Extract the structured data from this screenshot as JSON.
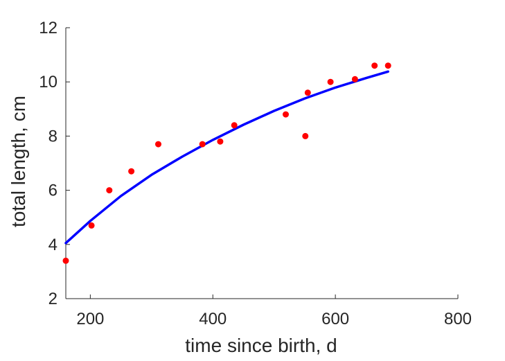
{
  "chart_data": {
    "type": "scatter",
    "title": "",
    "xlabel": "time since birth, d",
    "ylabel": "total length, cm",
    "xlim": [
      160,
      800
    ],
    "ylim": [
      2,
      12
    ],
    "xticks": [
      200,
      400,
      600,
      800
    ],
    "yticks": [
      2,
      4,
      6,
      8,
      10,
      12
    ],
    "grid": false,
    "legend": "none",
    "series": [
      {
        "kind": "points",
        "color": "#ff0000",
        "points": [
          [
            160,
            3.4
          ],
          [
            202,
            4.7
          ],
          [
            231,
            6.0
          ],
          [
            267,
            6.7
          ],
          [
            311,
            7.7
          ],
          [
            383,
            7.7
          ],
          [
            412,
            7.8
          ],
          [
            435,
            8.4
          ],
          [
            519,
            8.8
          ],
          [
            551,
            8.0
          ],
          [
            555,
            9.6
          ],
          [
            592,
            10.0
          ],
          [
            632,
            10.1
          ],
          [
            664,
            10.6
          ],
          [
            686,
            10.6
          ]
        ]
      },
      {
        "kind": "line",
        "color": "#0000ff",
        "points": [
          [
            160,
            4.05
          ],
          [
            200,
            4.87
          ],
          [
            250,
            5.79
          ],
          [
            300,
            6.57
          ],
          [
            350,
            7.24
          ],
          [
            400,
            7.86
          ],
          [
            450,
            8.42
          ],
          [
            500,
            8.93
          ],
          [
            550,
            9.39
          ],
          [
            600,
            9.79
          ],
          [
            650,
            10.14
          ],
          [
            686,
            10.38
          ]
        ]
      }
    ]
  }
}
